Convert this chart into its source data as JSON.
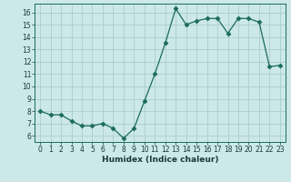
{
  "x": [
    0,
    1,
    2,
    3,
    4,
    5,
    6,
    7,
    8,
    9,
    10,
    11,
    12,
    13,
    14,
    15,
    16,
    17,
    18,
    19,
    20,
    21,
    22,
    23
  ],
  "y": [
    8.0,
    7.7,
    7.7,
    7.2,
    6.8,
    6.8,
    7.0,
    6.6,
    5.8,
    6.6,
    8.8,
    11.0,
    13.5,
    16.3,
    15.0,
    15.3,
    15.5,
    15.5,
    14.3,
    15.5,
    15.5,
    15.2,
    11.6,
    11.7
  ],
  "xlim": [
    -0.5,
    23.5
  ],
  "ylim": [
    5.5,
    16.7
  ],
  "yticks": [
    6,
    7,
    8,
    9,
    10,
    11,
    12,
    13,
    14,
    15,
    16
  ],
  "xticks": [
    0,
    1,
    2,
    3,
    4,
    5,
    6,
    7,
    8,
    9,
    10,
    11,
    12,
    13,
    14,
    15,
    16,
    17,
    18,
    19,
    20,
    21,
    22,
    23
  ],
  "xlabel": "Humidex (Indice chaleur)",
  "line_color": "#1a6b5a",
  "marker": "D",
  "marker_size": 2.5,
  "bg_color": "#cce8e8",
  "grid_color": "#aacece",
  "tick_fontsize": 5.5,
  "xlabel_fontsize": 6.5
}
